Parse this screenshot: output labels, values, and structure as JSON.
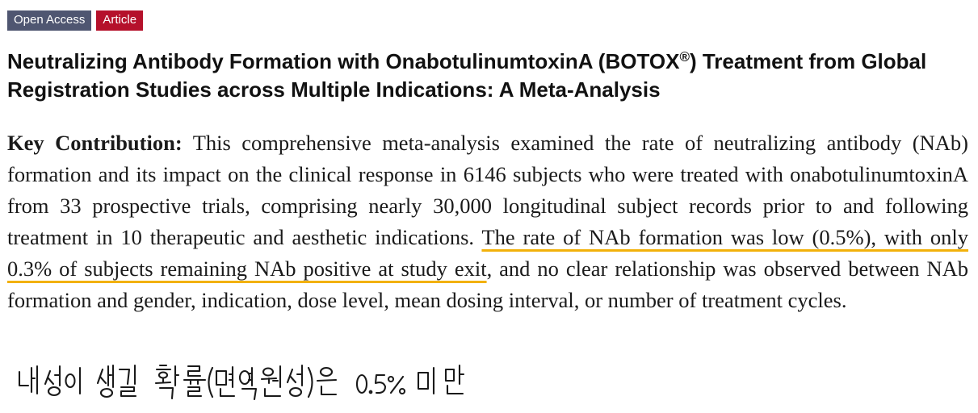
{
  "badges": {
    "open_access": "Open Access",
    "article": "Article"
  },
  "title": {
    "before": "Neutralizing Antibody Formation with OnabotulinumtoxinA (BOTOX",
    "sup": "®",
    "after": ") Treatment from Global Registration Studies across Multiple Indications: A Meta-Analysis"
  },
  "key_contribution": {
    "label": "Key Contribution:",
    "text_before": "This comprehensive meta-analysis examined the rate of neutralizing antibody (NAb) formation and its impact on the clinical response in 6146 subjects who were treated with onabotulinumtoxinA from 33 prospective trials, comprising nearly 30,000 longitudinal subject records prior to and following treatment in 10 therapeutic and aesthetic indications.",
    "highlighted": "The rate of NAb formation was low (0.5%), with only 0.3% of subjects remaining NAb positive at study exit",
    "text_after": ", and no clear relationship was observed between NAb formation and gender, indication, dose level, mean dosing interval, or number of treatment cycles."
  },
  "handwritten_note": "내성이 생길 확률(면역원성)은 0.5% 미만",
  "colors": {
    "open_access_badge": "#4f5671",
    "article_badge": "#b5112b",
    "highlight_underline": "#f2b10a"
  }
}
